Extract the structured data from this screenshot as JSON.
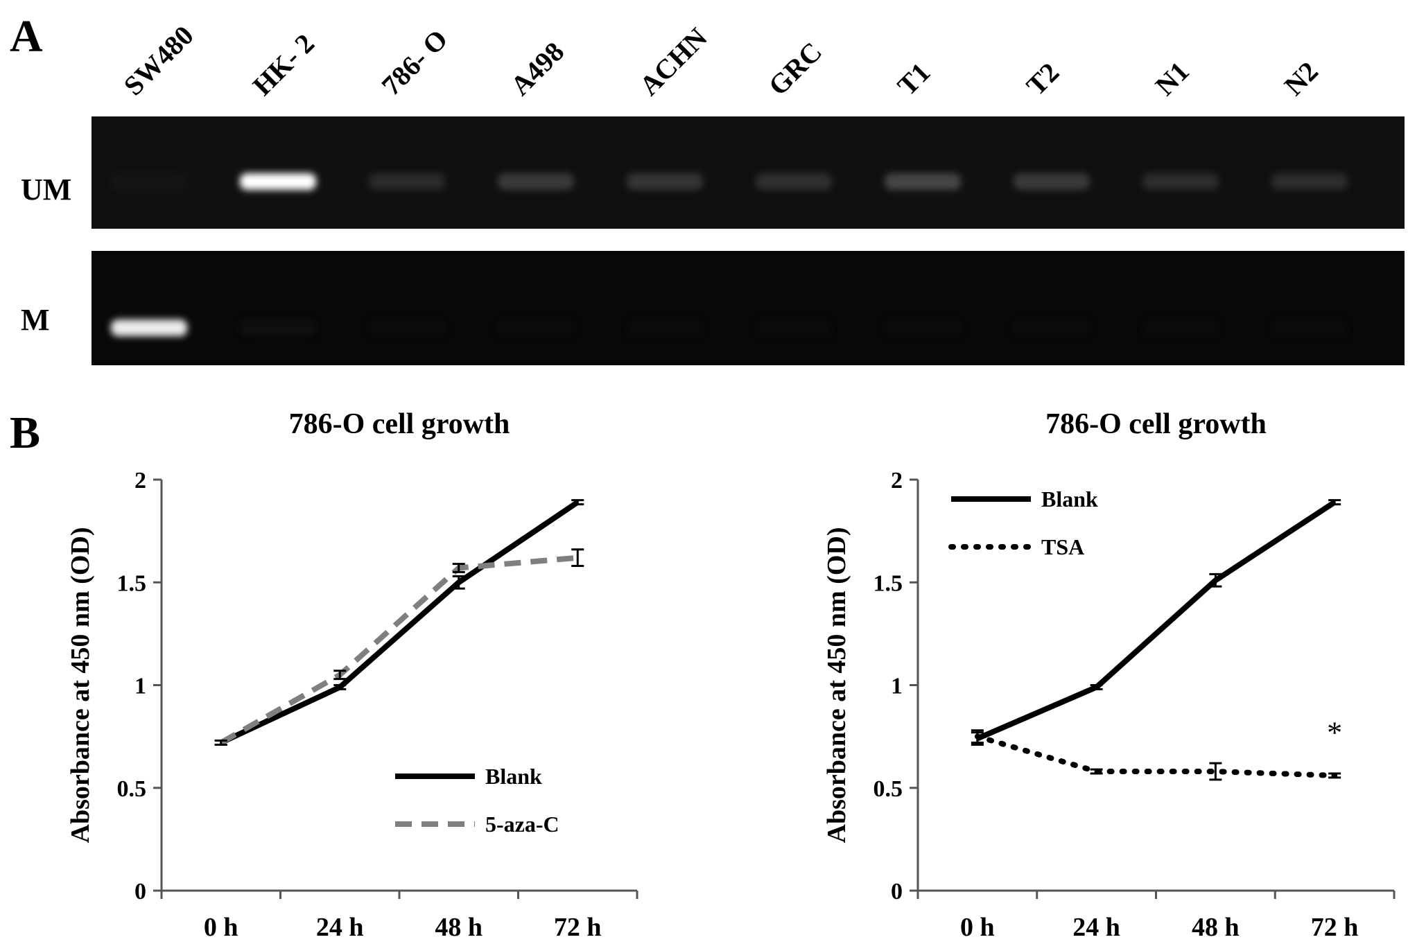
{
  "panel_a": {
    "letter": "A",
    "lanes": [
      "SW480",
      "HK- 2",
      "786- O",
      "A498",
      "ACHN",
      "GRC",
      "T1",
      "T2",
      "N1",
      "N2"
    ],
    "rows": [
      "UM",
      "M"
    ],
    "band_intensity": {
      "UM": [
        0.05,
        1.0,
        0.22,
        0.3,
        0.28,
        0.25,
        0.36,
        0.3,
        0.24,
        0.24
      ],
      "M": [
        0.92,
        0.05,
        0.02,
        0.02,
        0.02,
        0.02,
        0.02,
        0.02,
        0.02,
        0.02
      ]
    }
  },
  "panel_b": {
    "letter": "B"
  },
  "chart_data": [
    {
      "type": "line",
      "title": "786-O cell growth",
      "ylabel": "Absorbance at 450 nm (OD)",
      "xlabel": "",
      "categories": [
        "0 h",
        "24 h",
        "48 h",
        "72 h"
      ],
      "ylim": [
        0,
        2
      ],
      "yticks": [
        "0",
        "0.5",
        "1",
        "1.5",
        "2"
      ],
      "legend_position": "bottom-right",
      "series": [
        {
          "name": "Blank",
          "values": [
            0.72,
            0.99,
            1.5,
            1.89
          ],
          "errors": [
            0.01,
            0.01,
            0.03,
            0.01
          ],
          "style": "solid",
          "color": "#000000"
        },
        {
          "name": "5-aza-C",
          "values": [
            0.72,
            1.05,
            1.57,
            1.62
          ],
          "errors": [
            0.01,
            0.02,
            0.02,
            0.04
          ],
          "style": "dashed",
          "color": "#7f7f7f"
        }
      ]
    },
    {
      "type": "line",
      "title": "786-O cell growth",
      "ylabel": "Absorbance at 450 nm (OD)",
      "xlabel": "",
      "categories": [
        "0 h",
        "24 h",
        "48 h",
        "72 h"
      ],
      "ylim": [
        0,
        2
      ],
      "yticks": [
        "0",
        "0.5",
        "1",
        "1.5",
        "2"
      ],
      "legend_position": "top-left",
      "annotation": "*",
      "series": [
        {
          "name": "Blank",
          "values": [
            0.74,
            0.99,
            1.51,
            1.89
          ],
          "errors": [
            0.03,
            0.01,
            0.03,
            0.01
          ],
          "style": "solid",
          "color": "#000000"
        },
        {
          "name": "TSA",
          "values": [
            0.75,
            0.58,
            0.58,
            0.56
          ],
          "errors": [
            0.03,
            0.01,
            0.04,
            0.01
          ],
          "style": "dotted",
          "color": "#000000"
        }
      ]
    }
  ]
}
